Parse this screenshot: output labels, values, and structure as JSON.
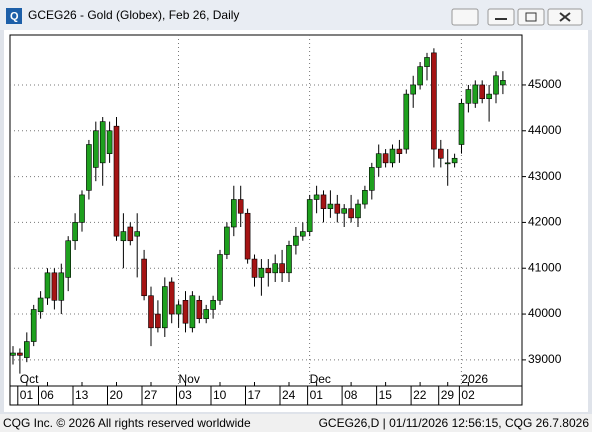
{
  "window": {
    "title": "GCEG26 - Gold (Globex), Feb 26, Daily"
  },
  "chart_data": {
    "type": "candlestick",
    "categories": [
      null,
      null,
      "01",
      null,
      null,
      "06",
      null,
      null,
      null,
      null,
      "13",
      null,
      null,
      null,
      null,
      "20",
      null,
      null,
      null,
      null,
      "27",
      null,
      null,
      null,
      null,
      "03",
      null,
      null,
      null,
      null,
      "10",
      null,
      null,
      null,
      null,
      "17",
      null,
      null,
      null,
      null,
      "24",
      null,
      null,
      null,
      "01",
      null,
      null,
      null,
      null,
      "08",
      null,
      null,
      null,
      null,
      "15",
      null,
      null,
      null,
      null,
      "22",
      null,
      null,
      null,
      "29",
      null,
      null,
      "02",
      null,
      null,
      null,
      null,
      null
    ],
    "months": [
      null,
      null,
      "Oct",
      null,
      null,
      null,
      null,
      null,
      null,
      null,
      null,
      null,
      null,
      null,
      null,
      null,
      null,
      null,
      null,
      null,
      null,
      null,
      null,
      null,
      null,
      "Nov",
      null,
      null,
      null,
      null,
      null,
      null,
      null,
      null,
      null,
      null,
      null,
      null,
      null,
      null,
      null,
      null,
      null,
      null,
      "Dec",
      null,
      null,
      null,
      null,
      null,
      null,
      null,
      null,
      null,
      null,
      null,
      null,
      null,
      null,
      null,
      null,
      null,
      null,
      null,
      null,
      null,
      "2026",
      null,
      null,
      null,
      null,
      null
    ],
    "open": [
      39100,
      39150,
      39050,
      39400,
      40050,
      40350,
      40900,
      40300,
      40800,
      41600,
      42000,
      42700,
      43200,
      43300,
      43500,
      44100,
      41600,
      41900,
      41700,
      41200,
      40400,
      40000,
      39700,
      40700,
      40000,
      40300,
      39700,
      40300,
      39900,
      40100,
      40300,
      41300,
      41900,
      42500,
      42200,
      41200,
      40800,
      41000,
      40900,
      41100,
      40900,
      41500,
      41700,
      41800,
      42500,
      42600,
      42300,
      42400,
      42200,
      42300,
      42100,
      42400,
      42700,
      43200,
      43500,
      43300,
      43600,
      43600,
      44800,
      45000,
      45400,
      45700,
      43600,
      43300,
      43300,
      43700,
      44600,
      44600,
      45000,
      44700,
      44800,
      45000
    ],
    "high": [
      39300,
      39250,
      39600,
      40200,
      40500,
      41000,
      41000,
      41100,
      41700,
      42200,
      42700,
      43800,
      44200,
      44300,
      44200,
      44300,
      42200,
      42000,
      42200,
      41400,
      40600,
      40300,
      40800,
      40800,
      40300,
      40500,
      40500,
      40400,
      40200,
      40400,
      41400,
      42000,
      42800,
      42800,
      42300,
      41300,
      41200,
      41200,
      41300,
      41400,
      41600,
      41900,
      42000,
      42600,
      42800,
      42700,
      42700,
      42600,
      42400,
      42600,
      42500,
      42800,
      43300,
      43700,
      43600,
      43700,
      43800,
      44900,
      45200,
      45500,
      45700,
      45800,
      43800,
      43600,
      43500,
      44700,
      45000,
      45100,
      45100,
      45000,
      45300,
      45300
    ],
    "low": [
      38900,
      38700,
      38950,
      39300,
      39900,
      40200,
      40100,
      40000,
      40500,
      41400,
      41800,
      42500,
      42900,
      42800,
      43300,
      41600,
      41000,
      41500,
      40800,
      40300,
      39300,
      39600,
      39500,
      39800,
      39700,
      39600,
      39600,
      39800,
      39800,
      39900,
      40200,
      41200,
      41700,
      41900,
      41100,
      40600,
      40400,
      40600,
      40700,
      40700,
      40700,
      41300,
      41600,
      41700,
      42200,
      42000,
      42100,
      42000,
      41900,
      42000,
      41900,
      42300,
      42500,
      43000,
      43200,
      43200,
      43300,
      43500,
      44500,
      44900,
      45100,
      43200,
      43200,
      42800,
      43200,
      43500,
      44400,
      44500,
      44600,
      44200,
      44600,
      44800
    ],
    "close": [
      39150,
      39100,
      39400,
      40100,
      40350,
      40900,
      40300,
      40900,
      41600,
      42000,
      42600,
      43700,
      44000,
      44200,
      44000,
      41700,
      41800,
      41600,
      41800,
      40400,
      39700,
      39700,
      40600,
      40000,
      40200,
      39800,
      40400,
      39900,
      40100,
      40300,
      41300,
      41900,
      42500,
      42200,
      41200,
      40800,
      41000,
      40900,
      41100,
      40900,
      41500,
      41700,
      41800,
      42500,
      42600,
      42300,
      42400,
      42200,
      42300,
      42100,
      42400,
      42700,
      43200,
      43500,
      43300,
      43600,
      43500,
      44800,
      45000,
      45400,
      45600,
      43600,
      43400,
      43300,
      43400,
      44600,
      44900,
      45000,
      44700,
      44800,
      45200,
      45100
    ],
    "up_color": "#1ea01e",
    "down_color": "#a51414",
    "ylim": [
      38430,
      46090
    ],
    "yticks": [
      39000,
      40000,
      41000,
      42000,
      43000,
      44000,
      45000
    ],
    "grid": true
  },
  "footer": {
    "left": "CQG Inc. © 2026 All rights reserved worldwide",
    "right": "GCEG26,D | 01/11/2026 12:56:15, CQG 26.7.8026"
  }
}
